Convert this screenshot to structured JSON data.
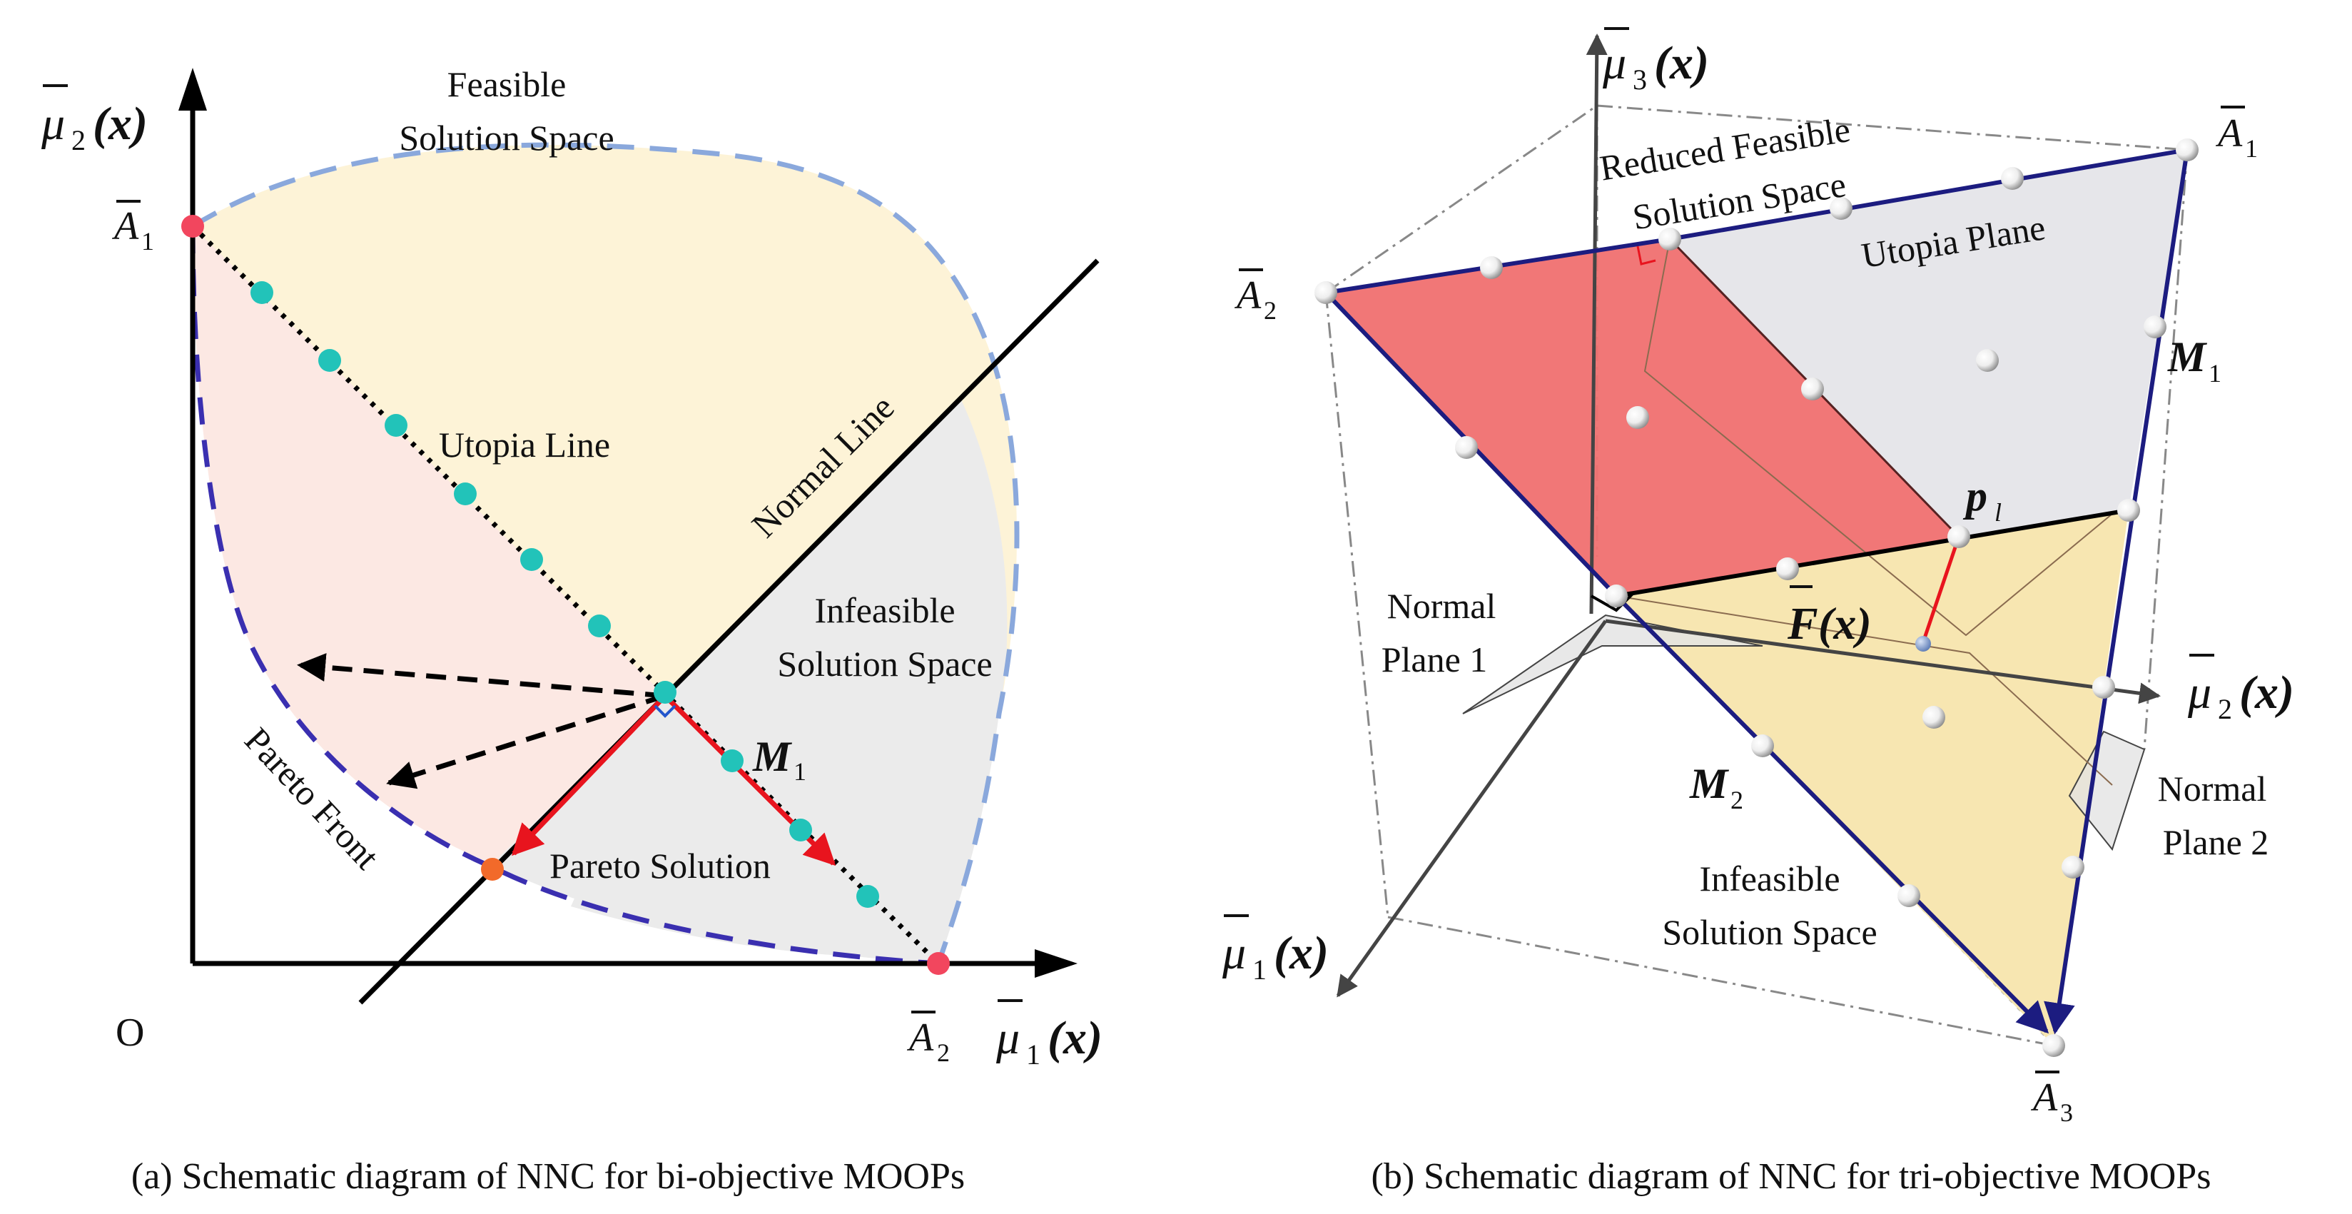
{
  "panel_a": {
    "caption": "(a) Schematic diagram of NNC for bi-objective MOOPs",
    "y_axis": {
      "sym": "μ",
      "sub": "2",
      "arg": "(x)"
    },
    "x_axis": {
      "sym": "μ",
      "sub": "1",
      "arg": "(x)"
    },
    "origin": "O",
    "a1": {
      "sym": "A",
      "sub": "1"
    },
    "a2": {
      "sym": "A",
      "sub": "2"
    },
    "m1": {
      "sym": "M",
      "sub": "1"
    },
    "feasible_line1": "Feasible",
    "feasible_line2": "Solution Space",
    "utopia_line": "Utopia Line",
    "normal_line": "Normal Line",
    "infeasible_line1": "Infeasible",
    "infeasible_line2": "Solution Space",
    "pareto_front": "Pareto Front",
    "pareto_solution": "Pareto Solution"
  },
  "panel_b": {
    "caption": "(b) Schematic diagram of NNC for tri-objective MOOPs",
    "mu1": {
      "sym": "μ",
      "sub": "1",
      "arg": "(x)"
    },
    "mu2": {
      "sym": "μ",
      "sub": "2",
      "arg": "(x)"
    },
    "mu3": {
      "sym": "μ",
      "sub": "3",
      "arg": "(x)"
    },
    "a1": {
      "sym": "A",
      "sub": "1"
    },
    "a2": {
      "sym": "A",
      "sub": "2"
    },
    "a3": {
      "sym": "A",
      "sub": "3"
    },
    "m1": {
      "sym": "M",
      "sub": "1"
    },
    "m2": {
      "sym": "M",
      "sub": "2"
    },
    "pl": {
      "sym": "p",
      "sub": "l"
    },
    "fx": {
      "sym": "F",
      "arg": "(x)"
    },
    "reduced_line1": "Reduced Feasible",
    "reduced_line2": "Solution Space",
    "utopia_plane": "Utopia Plane",
    "normal_plane1_line1": "Normal",
    "normal_plane1_line2": "Plane 1",
    "normal_plane2_line1": "Normal",
    "normal_plane2_line2": "Plane 2",
    "infeasible_line1": "Infeasible",
    "infeasible_line2": "Solution Space"
  },
  "colors": {
    "feasible_fill": "#fdf3d7",
    "pareto_region_fill": "#fce8e3",
    "infeasible_fill": "#ebebeb",
    "feasible_boundary": "#8aa8dc",
    "pareto_front": "#3a2fb0",
    "utopia_points": "#22c3b9",
    "anchor_points": "#f2465e",
    "pareto_solution": "#f26a2a",
    "arrow_red": "#e8141e",
    "reduced_space": "#f07070",
    "utopia_plane_fill": "#e6e6ea",
    "infeasible_plane_fill": "#f6e3a8",
    "edge_navy": "#1c1c80"
  }
}
